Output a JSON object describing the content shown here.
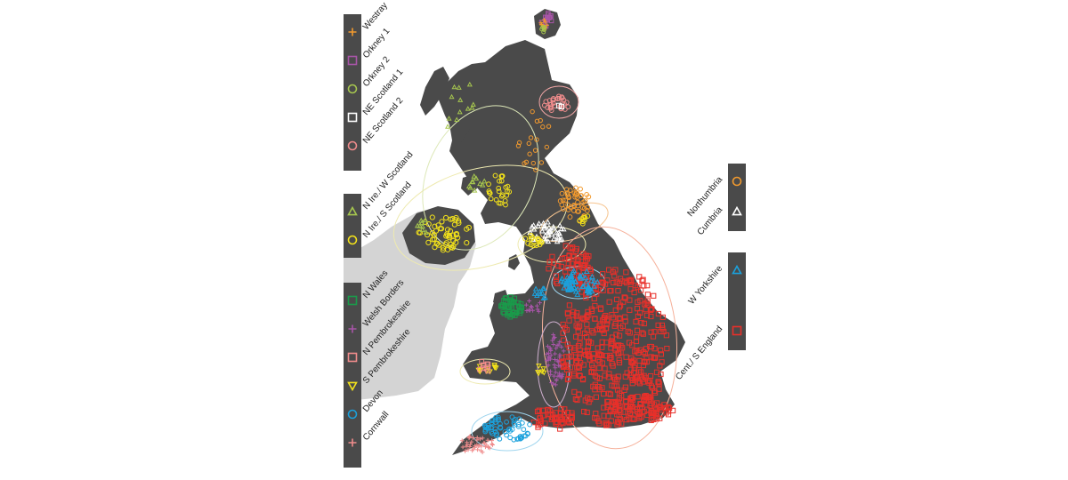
{
  "colors": {
    "land": "#4a4a4a",
    "ireland": "#d4d4d4",
    "legend_bg": "#4a4a4a",
    "westray": "#f29a2e",
    "orkney1": "#a855a8",
    "orkney2": "#a6c64f",
    "ne_scotland1": "#ffffff",
    "ne_scotland2": "#f08c8c",
    "n_ire_w_scotland": "#a6c64f",
    "n_ire_s_scotland": "#f4e31a",
    "n_wales": "#1a9b4a",
    "welsh_borders": "#a855a8",
    "n_pembrokeshire": "#f08c8c",
    "s_pembrokeshire": "#f4e31a",
    "devon": "#1ba1dc",
    "cornwall": "#f08c8c",
    "northumbria": "#f29a2e",
    "cumbria": "#ffffff",
    "w_yorkshire": "#1ba1dc",
    "cent_s_england": "#e8302a"
  },
  "legend_left_top": [
    {
      "label": "Westray",
      "marker": "plus",
      "color_key": "westray"
    },
    {
      "label": "Orkney 1",
      "marker": "square",
      "color_key": "orkney1"
    },
    {
      "label": "Orkney 2",
      "marker": "circle",
      "color_key": "orkney2"
    },
    {
      "label": "NE Scotland 1",
      "marker": "square",
      "color_key": "ne_scotland1"
    },
    {
      "label": "NE Scotland 2",
      "marker": "circle",
      "color_key": "ne_scotland2"
    }
  ],
  "legend_left_mid": [
    {
      "label": "N Ire./ W Scotland",
      "marker": "triangle",
      "color_key": "n_ire_w_scotland"
    },
    {
      "label": "N Ire./ S Scotland",
      "marker": "circle",
      "color_key": "n_ire_s_scotland"
    }
  ],
  "legend_left_bottom": [
    {
      "label": "N Wales",
      "marker": "square",
      "color_key": "n_wales"
    },
    {
      "label": "Welsh Borders",
      "marker": "plus",
      "color_key": "welsh_borders"
    },
    {
      "label": "N Pembrokeshire",
      "marker": "square",
      "color_key": "n_pembrokeshire"
    },
    {
      "label": "S Pembrokeshire",
      "marker": "triangle-down",
      "color_key": "s_pembrokeshire"
    },
    {
      "label": "Devon",
      "marker": "circle",
      "color_key": "devon"
    },
    {
      "label": "Cornwall",
      "marker": "plus",
      "color_key": "cornwall"
    }
  ],
  "legend_right_top": [
    {
      "label": "Northumbria",
      "marker": "circle",
      "color_key": "northumbria"
    },
    {
      "label": "Cumbria",
      "marker": "triangle",
      "color_key": "cumbria"
    }
  ],
  "legend_right_bottom": [
    {
      "label": "W Yorkshire",
      "marker": "triangle",
      "color_key": "w_yorkshire"
    },
    {
      "label": "Cent./ S England",
      "marker": "square",
      "color_key": "cent_s_england"
    }
  ]
}
